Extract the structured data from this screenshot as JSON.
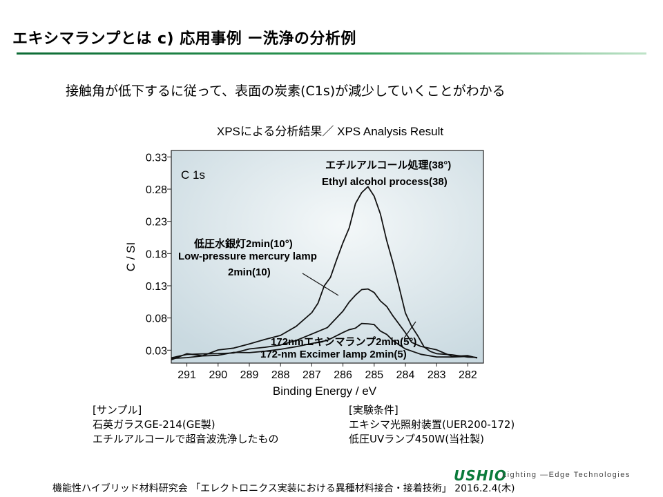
{
  "page": {
    "title": "エキシマランプとは c) 応用事例 ー洗浄の分析例",
    "subtitle": "接触角が低下するに従って、表面の炭素(C1s)が減少していくことがわかる"
  },
  "chart_data": {
    "type": "line",
    "title": "XPSによる分析結果／ XPS Analysis Result",
    "xlabel": "Binding Energy / eV",
    "ylabel": "C / SI",
    "xlim": [
      291.5,
      281.5
    ],
    "ylim": [
      0.01,
      0.34
    ],
    "x_ticks": [
      "291",
      "290",
      "289",
      "288",
      "287",
      "286",
      "285",
      "284",
      "283",
      "282"
    ],
    "y_ticks": [
      "0.33",
      "0.28",
      "0.23",
      "0.18",
      "0.13",
      "0.08",
      "0.03"
    ],
    "panel_label": "C 1s",
    "grid": false,
    "series": [
      {
        "name": "Ethyl alcohol process (38)",
        "label_jp": "エチルアルコール処理(38°)",
        "label_en": "Ethyl alcohol process(38)",
        "x": [
          291.5,
          291.0,
          290.5,
          290.0,
          289.5,
          289.0,
          288.5,
          288.0,
          287.5,
          287.0,
          286.8,
          286.6,
          286.4,
          286.2,
          286.0,
          285.8,
          285.6,
          285.4,
          285.2,
          285.0,
          284.8,
          284.6,
          284.4,
          284.2,
          284.0,
          283.8,
          283.6,
          283.4,
          283.2,
          283.0,
          282.5,
          282.0,
          281.7
        ],
        "y": [
          0.018,
          0.022,
          0.024,
          0.03,
          0.034,
          0.04,
          0.046,
          0.055,
          0.068,
          0.088,
          0.1,
          0.128,
          0.145,
          0.168,
          0.195,
          0.22,
          0.255,
          0.275,
          0.283,
          0.27,
          0.24,
          0.2,
          0.165,
          0.128,
          0.09,
          0.068,
          0.052,
          0.038,
          0.03,
          0.025,
          0.02,
          0.018,
          0.02
        ]
      },
      {
        "name": "Low-pressure mercury lamp 2min (10)",
        "label_jp": "低圧水銀灯2min(10°)",
        "label_en": "Low-pressure mercury lamp",
        "label_en2": "2min(10)",
        "x": [
          291.5,
          291.0,
          290.5,
          290.0,
          289.5,
          289.0,
          288.5,
          288.0,
          287.5,
          287.0,
          286.5,
          286.0,
          285.8,
          285.6,
          285.4,
          285.2,
          285.0,
          284.8,
          284.6,
          284.4,
          284.2,
          284.0,
          283.8,
          283.5,
          283.0,
          282.5,
          282.0,
          281.7
        ],
        "y": [
          0.02,
          0.022,
          0.024,
          0.025,
          0.027,
          0.03,
          0.033,
          0.038,
          0.045,
          0.055,
          0.068,
          0.09,
          0.104,
          0.116,
          0.122,
          0.126,
          0.12,
          0.108,
          0.095,
          0.082,
          0.068,
          0.055,
          0.045,
          0.035,
          0.028,
          0.022,
          0.02,
          0.02
        ]
      },
      {
        "name": "172-nm Excimer lamp 2min (5)",
        "label_jp": "172nmエキシマランプ2min(5°)",
        "label_en": "172-nm Excimer lamp 2min(5)",
        "x": [
          291.5,
          291.0,
          290.5,
          290.0,
          289.5,
          289.0,
          288.5,
          288.0,
          287.5,
          287.0,
          286.5,
          286.0,
          285.8,
          285.6,
          285.4,
          285.2,
          285.0,
          284.8,
          284.6,
          284.4,
          284.2,
          284.0,
          283.5,
          283.0,
          282.5,
          282.0,
          281.7
        ],
        "y": [
          0.02,
          0.021,
          0.022,
          0.023,
          0.024,
          0.026,
          0.028,
          0.031,
          0.035,
          0.04,
          0.046,
          0.055,
          0.06,
          0.066,
          0.07,
          0.07,
          0.067,
          0.06,
          0.052,
          0.045,
          0.038,
          0.032,
          0.026,
          0.022,
          0.02,
          0.018,
          0.018
        ]
      }
    ]
  },
  "sample": {
    "heading": "[サンプル]",
    "line1": "石英ガラスGE-214(GE製)",
    "line2": "エチルアルコールで超音波洗浄したもの"
  },
  "conditions": {
    "heading": "[実験条件]",
    "line1": "エキシマ光照射装置(UER200-172)",
    "line2": "低圧UVランプ450W(当社製)"
  },
  "footer": {
    "citation": "機能性ハイブリッド材料研究会 「エレクトロニクス実装における異種材料接合・接着技術」 2016.2.4(木)",
    "brand": "USHIO",
    "tagline": "Lighting —Edge Technologies"
  },
  "colors": {
    "title_rule": "#0d6b35",
    "brand": "#0a7a3a",
    "plot_bg_top": "#c9d9e0",
    "plot_bg_bottom": "#f4f8f9"
  }
}
